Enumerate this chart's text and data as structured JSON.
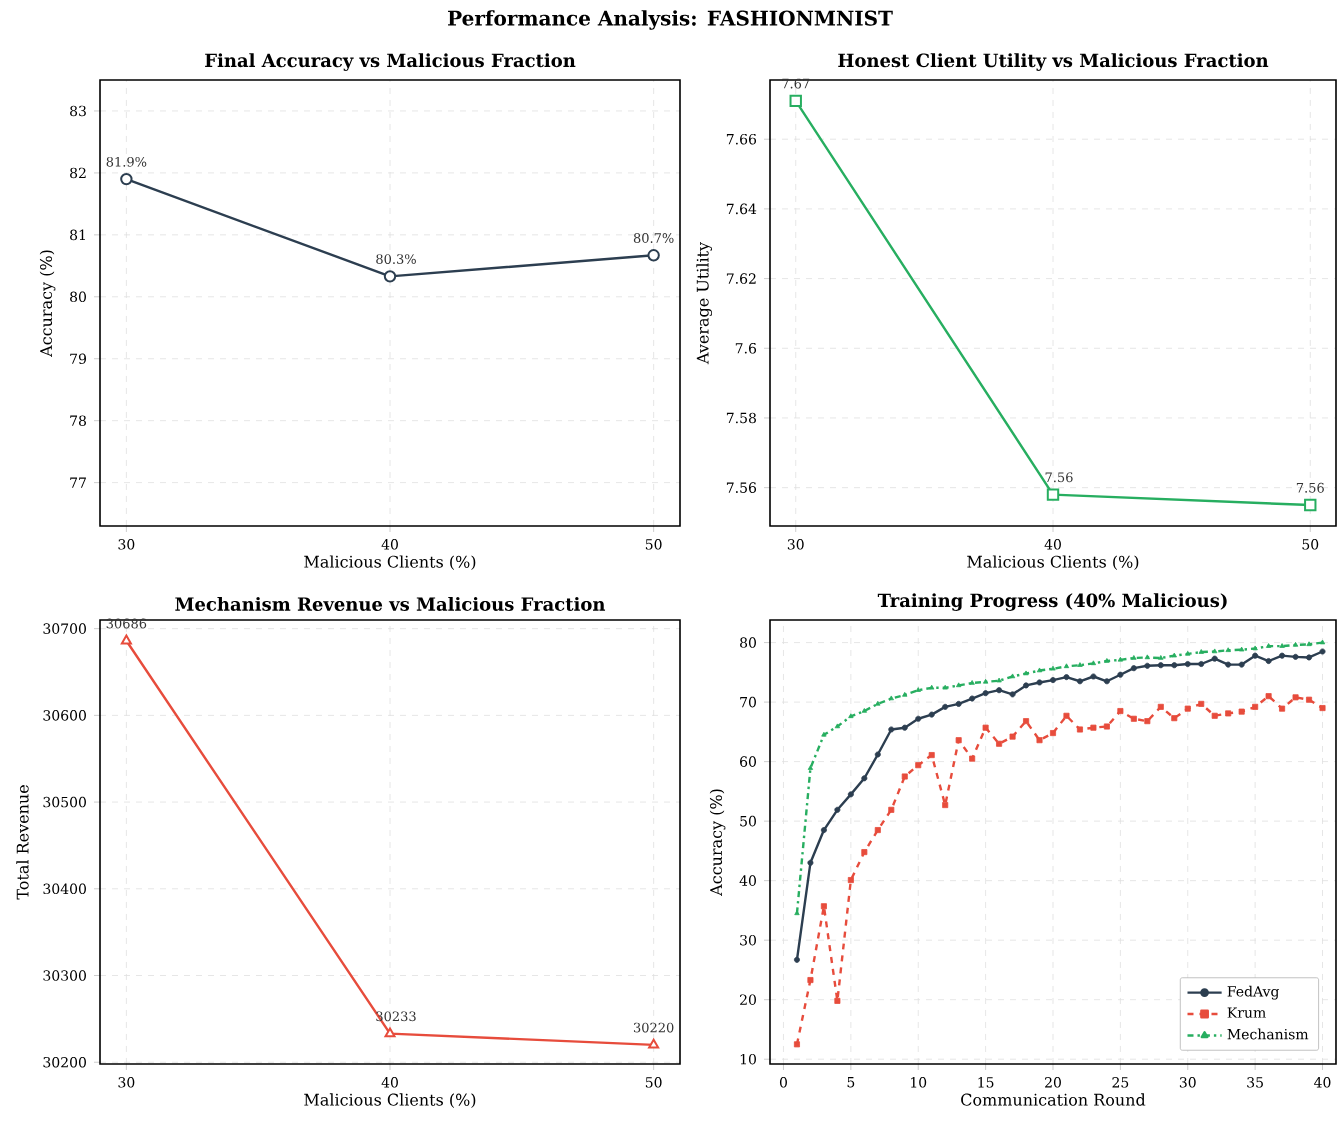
{
  "chart_data": [
    {
      "type": "line",
      "title": "Final Accuracy vs Malicious Fraction",
      "xlabel": "Malicious Clients (%)",
      "ylabel": "Accuracy (%)",
      "annotations": [
        "Performance Analysis: FASHIONMNIST"
      ],
      "x": [
        30,
        40,
        50
      ],
      "values": [
        81.9,
        80.33,
        80.67
      ],
      "value_labels": [
        "81.9%",
        "80.3%",
        "80.7%"
      ],
      "color": "#2c3e50",
      "marker": "circle",
      "xlim": [
        29,
        51
      ],
      "xticks": [
        30,
        40,
        50
      ],
      "ylim": [
        76.3,
        83.5
      ],
      "yticks": [
        77,
        78,
        79,
        80,
        81,
        82,
        83
      ],
      "grid": true
    },
    {
      "type": "line",
      "title": "Honest Client Utility vs Malicious Fraction",
      "xlabel": "Malicious Clients (%)",
      "ylabel": "Average Utility",
      "x": [
        30,
        40,
        50
      ],
      "values": [
        7.671,
        7.558,
        7.555
      ],
      "value_labels": [
        "7.67",
        "7.56",
        "7.56"
      ],
      "color": "#27ae60",
      "marker": "square",
      "xlim": [
        29,
        51
      ],
      "xticks": [
        30,
        40,
        50
      ],
      "ylim": [
        7.549,
        7.677
      ],
      "yticks": [
        7.56,
        7.58,
        7.6,
        7.62,
        7.64,
        7.66
      ],
      "grid": true
    },
    {
      "type": "line",
      "title": "Mechanism Revenue vs Malicious Fraction",
      "xlabel": "Malicious Clients (%)",
      "ylabel": "Total Revenue",
      "x": [
        30,
        40,
        50
      ],
      "values": [
        30686,
        30233,
        30220
      ],
      "data_labels": true,
      "color": "#e74c3c",
      "marker": "triangle",
      "xlim": [
        29,
        51
      ],
      "xticks": [
        30,
        40,
        50
      ],
      "ylim": [
        30198,
        30710
      ],
      "yticks": [
        30200,
        30300,
        30400,
        30500,
        30600,
        30700
      ],
      "grid": true
    },
    {
      "type": "line",
      "title": "Training Progress (40% Malicious)",
      "xlabel": "Communication Round",
      "ylabel": "Accuracy (%)",
      "x": [
        1,
        2,
        3,
        4,
        5,
        6,
        7,
        8,
        9,
        10,
        11,
        12,
        13,
        14,
        15,
        16,
        17,
        18,
        19,
        20,
        21,
        22,
        23,
        24,
        25,
        26,
        27,
        28,
        29,
        30,
        31,
        32,
        33,
        34,
        35,
        36,
        37,
        38,
        39,
        40
      ],
      "series": [
        {
          "name": "FedAvg",
          "color": "#2c3e50",
          "marker": "circle",
          "line_style": "solid",
          "values": [
            26.7,
            43,
            48.5,
            51.9,
            54.5,
            57.2,
            61.2,
            65.4,
            65.7,
            67.2,
            67.9,
            69.2,
            69.7,
            70.6,
            71.5,
            72.0,
            71.3,
            72.8,
            73.3,
            73.7,
            74.2,
            73.5,
            74.3,
            73.5,
            74.6,
            75.7,
            76.1,
            76.2,
            76.2,
            76.4,
            76.4,
            77.3,
            76.3,
            76.3,
            77.8,
            76.9,
            77.8,
            77.6,
            77.5,
            78.5
          ]
        },
        {
          "name": "Krum",
          "color": "#e74c3c",
          "marker": "square",
          "line_style": "dashed",
          "values": [
            12.5,
            23.3,
            35.7,
            19.8,
            40.1,
            44.8,
            48.5,
            51.9,
            57.5,
            59.4,
            61.1,
            52.7,
            63.6,
            60.5,
            65.7,
            63.0,
            64.2,
            66.8,
            63.6,
            64.8,
            67.7,
            65.4,
            65.7,
            65.9,
            68.5,
            67.2,
            66.8,
            69.2,
            67.3,
            68.9,
            69.7,
            67.7,
            68.1,
            68.4,
            69.2,
            71.0,
            68.9,
            70.8,
            70.4,
            69.0
          ]
        },
        {
          "name": "Mechanism",
          "color": "#27ae60",
          "marker": "triangle",
          "line_style": "dashdot",
          "values": [
            34.5,
            58.9,
            64.5,
            65.9,
            67.6,
            68.5,
            69.7,
            70.6,
            71.2,
            72.0,
            72.4,
            72.4,
            72.8,
            73.2,
            73.4,
            73.6,
            74.3,
            74.8,
            75.3,
            75.6,
            76.0,
            76.2,
            76.5,
            76.9,
            77.1,
            77.4,
            77.5,
            77.4,
            77.8,
            78.1,
            78.4,
            78.5,
            78.7,
            78.8,
            79.0,
            79.4,
            79.4,
            79.6,
            79.7,
            80.0
          ]
        }
      ],
      "xlim": [
        -1,
        41
      ],
      "xticks": [
        0,
        5,
        10,
        15,
        20,
        25,
        30,
        35,
        40
      ],
      "ylim": [
        9.2,
        83.8
      ],
      "yticks": [
        10,
        20,
        30,
        40,
        50,
        60,
        70,
        80
      ],
      "grid": true,
      "legend": "bottom right"
    }
  ]
}
